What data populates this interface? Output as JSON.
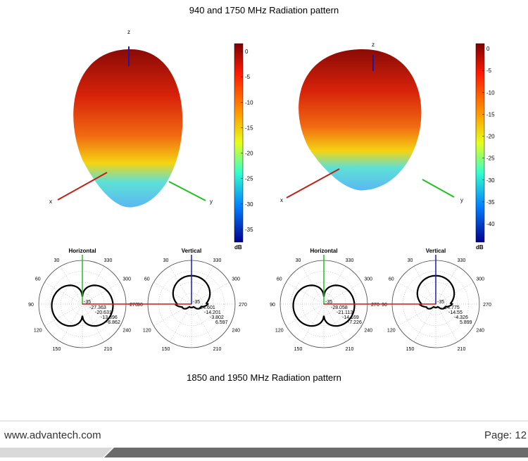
{
  "header": {
    "title": "940 and 1750 MHz Radiation pattern"
  },
  "figures": [
    {
      "axes": {
        "z": "z",
        "x": "x",
        "y": "y"
      },
      "colorbar": {
        "ticks": [
          "0",
          "-5",
          "-10",
          "-15",
          "-20",
          "-25",
          "-30",
          "-35"
        ],
        "unit": "dB"
      },
      "polar_plots": [
        {
          "title": "Horizontal",
          "center": "-35",
          "rings": [
            "-27.363",
            "-20.631",
            "-13.896",
            "-6.862"
          ],
          "angles": [
            "30",
            "330",
            "60",
            "300",
            "90",
            "270",
            "120",
            "240",
            "150",
            "210"
          ]
        },
        {
          "title": "Vertical",
          "center": "-35",
          "rings": [
            "-24.601",
            "-14.201",
            "-3.802",
            "6.597"
          ],
          "angles": [
            "30",
            "330",
            "60",
            "300",
            "90",
            "270",
            "120",
            "240",
            "150",
            "210"
          ]
        }
      ]
    },
    {
      "axes": {
        "z": "z",
        "x": "x",
        "y": "y"
      },
      "colorbar": {
        "ticks": [
          "0",
          "-5",
          "-10",
          "-15",
          "-20",
          "-25",
          "-30",
          "-35",
          "-40"
        ],
        "unit": "dB"
      },
      "polar_plots": [
        {
          "title": "Horizontal",
          "center": "-35",
          "rings": [
            "-28.058",
            "-21.113",
            "-14.169",
            "-7.226"
          ],
          "angles": [
            "30",
            "330",
            "60",
            "300",
            "90",
            "270",
            "120",
            "240",
            "150",
            "210"
          ]
        },
        {
          "title": "Vertical",
          "center": "-35",
          "rings": [
            "-24.775",
            "-14.55",
            "-4.326",
            "5.899"
          ],
          "angles": [
            "30",
            "330",
            "60",
            "300",
            "90",
            "270",
            "120",
            "240",
            "150",
            "210"
          ]
        }
      ]
    }
  ],
  "caption": "1850 and 1950 MHz Radiation pattern",
  "footer": {
    "url": "www.advantech.com",
    "page": "Page: 12"
  }
}
